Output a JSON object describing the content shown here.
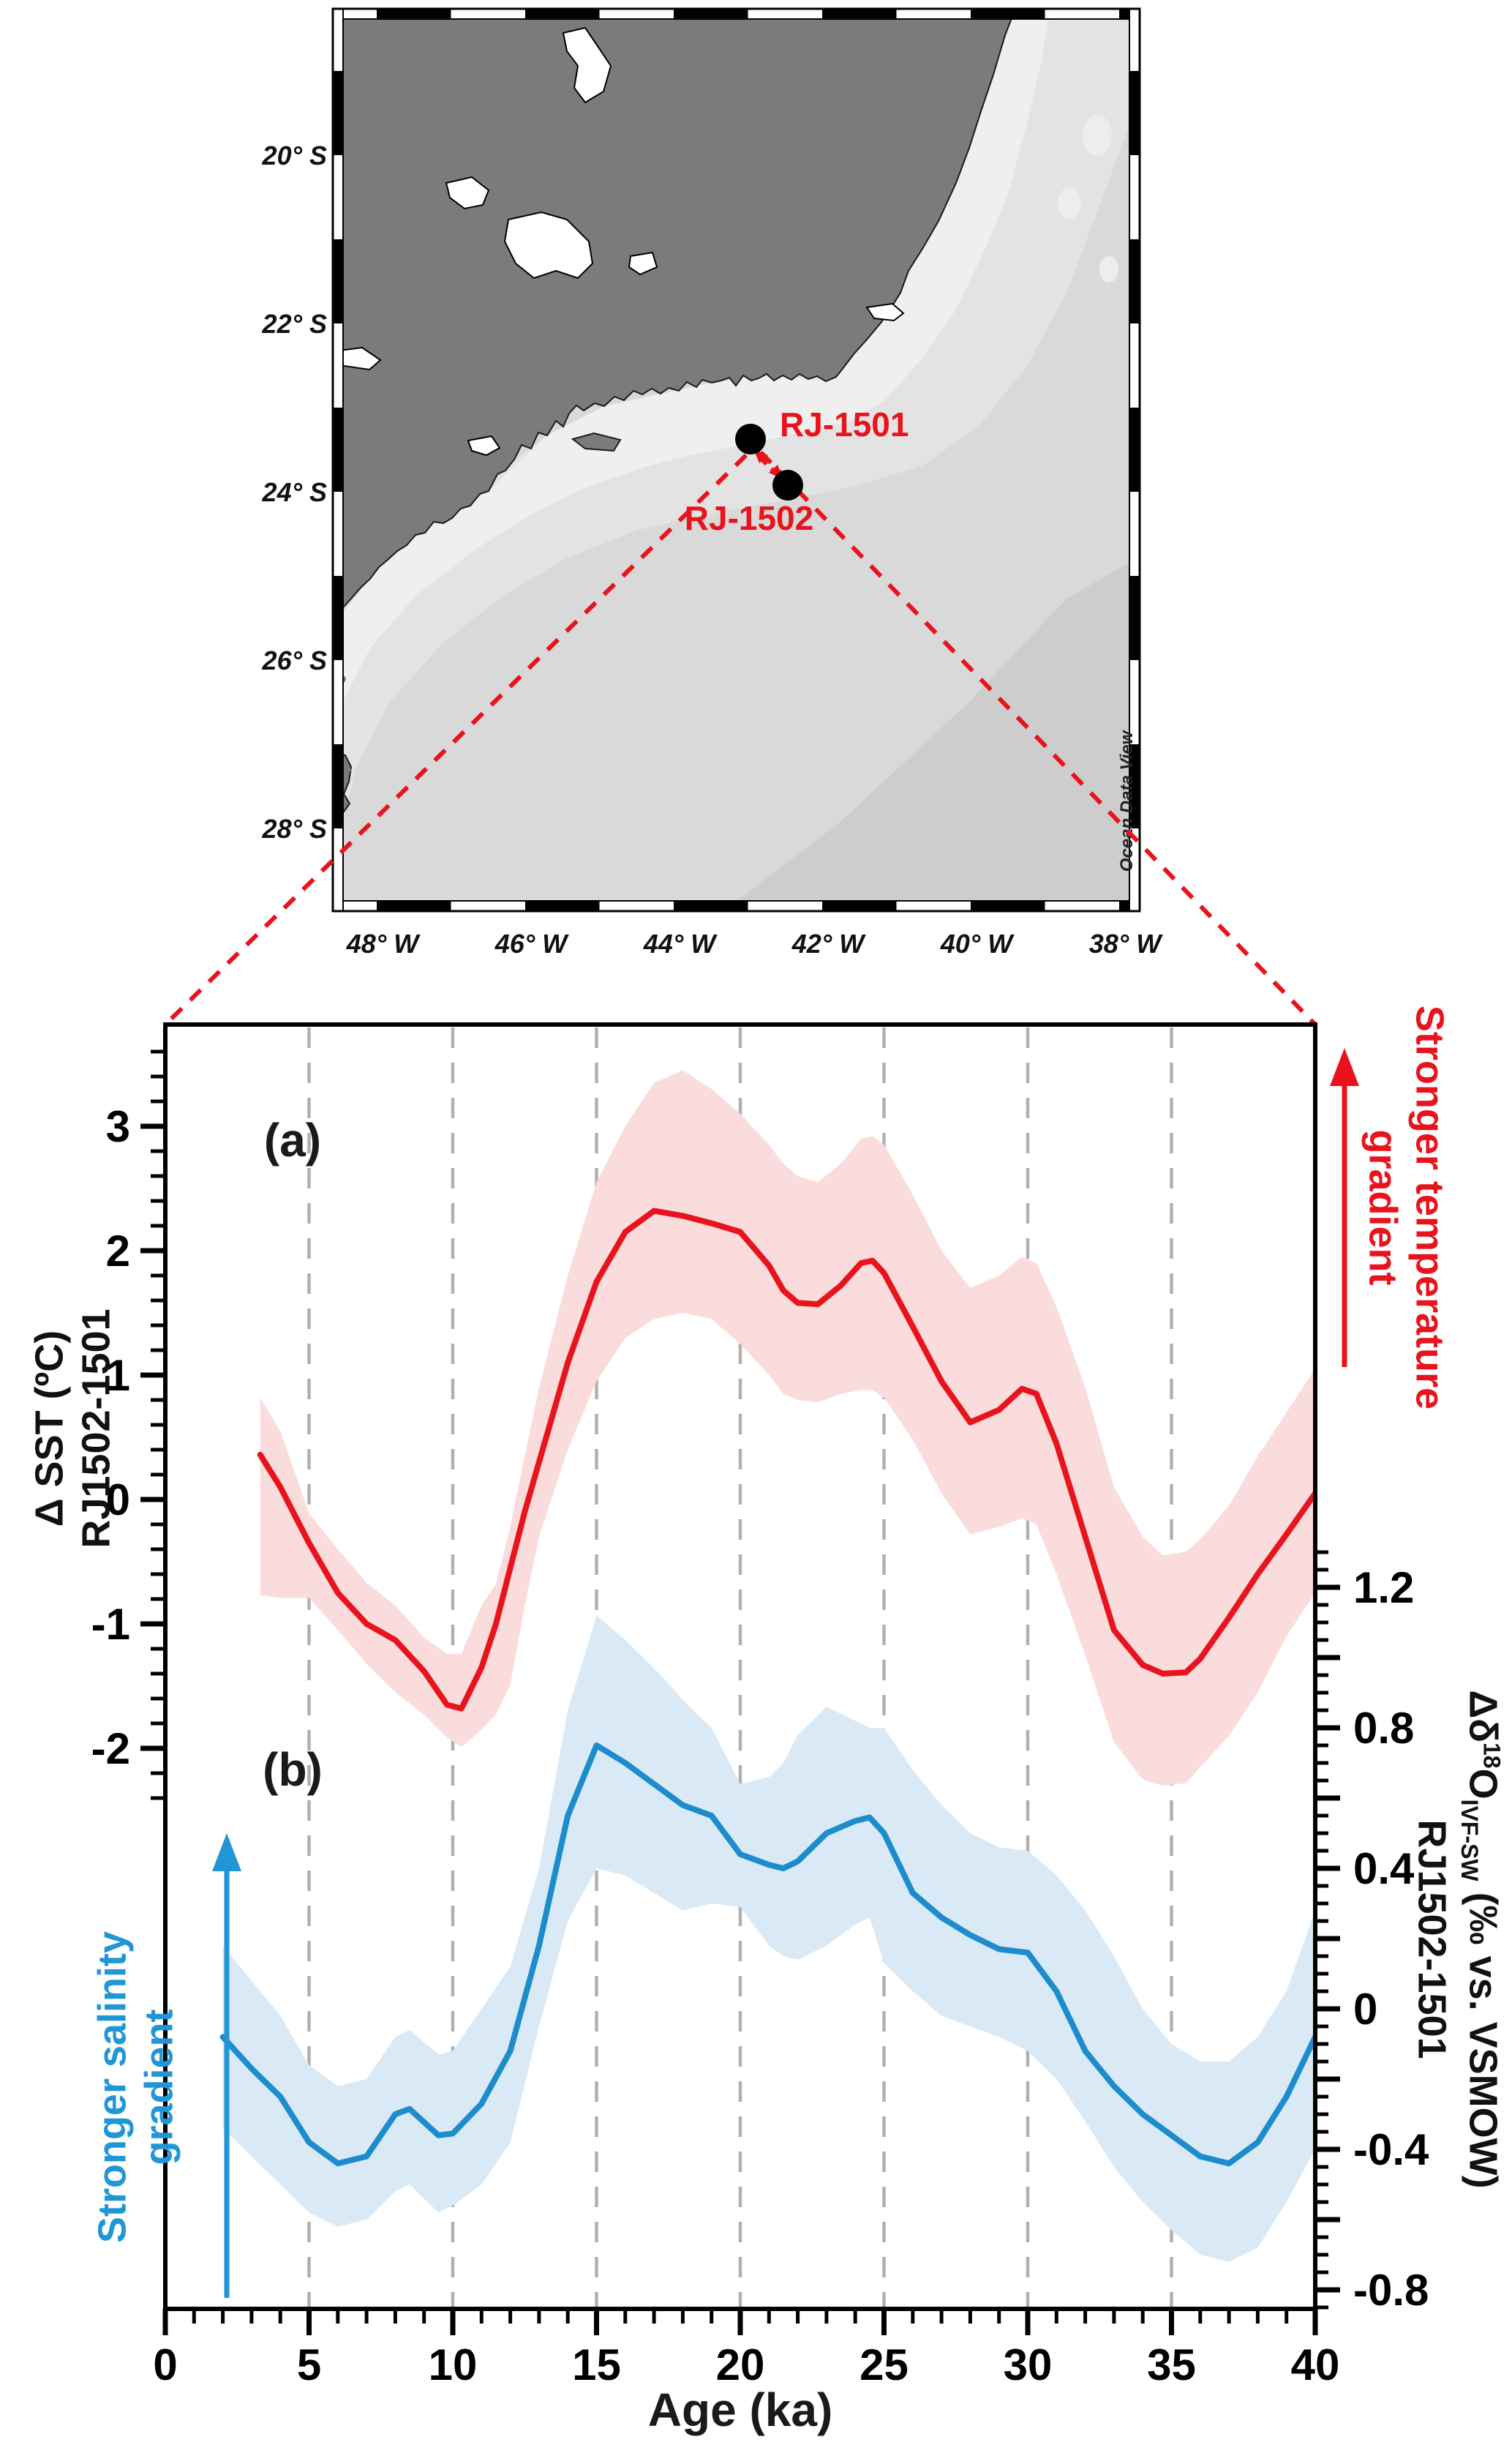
{
  "figure": {
    "panel_a": "(a)",
    "panel_b": "(b)"
  },
  "map": {
    "watermark": "Ocean Data View",
    "lat_labels": [
      "20° S",
      "22° S",
      "24° S",
      "26° S",
      "28° S"
    ],
    "lon_labels": [
      "48° W",
      "46° W",
      "44° W",
      "42° W",
      "40° W",
      "38° W"
    ],
    "sites": [
      {
        "name": "RJ-1501"
      },
      {
        "name": "RJ-1502"
      }
    ],
    "colors": {
      "land": "#7b7b7b",
      "ocean": "#d9d9d9",
      "mid": "#e3e3e3",
      "shelf": "#efefef",
      "deep": "#cdcdcd",
      "marker": "#000000",
      "accent": "#e8131c"
    }
  },
  "chart": {
    "x_axis": {
      "title": "Age (ka)",
      "tick_labels": [
        "0",
        "5",
        "10",
        "15",
        "20",
        "25",
        "30",
        "35",
        "40"
      ],
      "range": [
        0,
        40
      ],
      "major_step": 5,
      "minor_step": 1,
      "gridlines": [
        5,
        10,
        15,
        20,
        25,
        30,
        35
      ],
      "grid_color": "#b0b0b0"
    },
    "left_axis": {
      "title_line1": "Δ SST (ºC)",
      "title_line2": "RJ1502-1501",
      "tick_labels": [
        "3",
        "2",
        "1",
        "0",
        "-1",
        "-2"
      ],
      "tick_values": [
        3,
        2,
        1,
        0,
        -1,
        -2
      ],
      "minor_step": 0.2,
      "range": [
        -2.45,
        3.82
      ]
    },
    "right_axis": {
      "title_pre": "Δδ",
      "title_sup": "18",
      "title_o": "O",
      "title_sub": "IVF-SW",
      "title_post": " (‰ vs. VSMOW)",
      "title_line2": "RJ1502-1501",
      "tick_labels": [
        "1.2",
        "0.8",
        "0.4",
        "0",
        "-0.4",
        "-0.8"
      ],
      "tick_values": [
        1.2,
        0.8,
        0.4,
        0,
        -0.4,
        -0.8
      ],
      "minor_step": 0.05,
      "range": [
        -0.88,
        1.32
      ]
    },
    "annotations": {
      "temperature": {
        "line1": "Stronger temperature",
        "line2": "gradient",
        "color": "#e8131c"
      },
      "salinity": {
        "line1": "Stronger salinity",
        "line2": "gradient",
        "color": "#2196d6"
      }
    }
  },
  "chart_data": {
    "type": "line",
    "x_label": "Age (ka)",
    "x_range": [
      0,
      40
    ],
    "grid": "vertical-dashed",
    "series": [
      {
        "name": "ΔSST (°C) RJ1502-1501",
        "panel": "a",
        "axis": "left",
        "color": "#e8131c",
        "band_color": "#fadcdc",
        "x": [
          3.3,
          4,
          5,
          6,
          7,
          8,
          9,
          9.8,
          10.3,
          11,
          11.5,
          12,
          12.5,
          13,
          14,
          15,
          16,
          17,
          18,
          19,
          20,
          21,
          21.5,
          22,
          22.7,
          23.5,
          24.2,
          24.6,
          25,
          26,
          27,
          28,
          29,
          29.8,
          30.3,
          31,
          32,
          33,
          34,
          34.7,
          35.5,
          36,
          37,
          38,
          39,
          40
        ],
        "y": [
          0.36,
          0.1,
          -0.35,
          -0.75,
          -1.0,
          -1.13,
          -1.38,
          -1.65,
          -1.68,
          -1.35,
          -1.0,
          -0.55,
          -0.1,
          0.3,
          1.1,
          1.75,
          2.15,
          2.32,
          2.28,
          2.22,
          2.15,
          1.88,
          1.68,
          1.58,
          1.57,
          1.72,
          1.9,
          1.92,
          1.82,
          1.39,
          0.95,
          0.62,
          0.72,
          0.89,
          0.85,
          0.45,
          -0.3,
          -1.05,
          -1.33,
          -1.4,
          -1.39,
          -1.28,
          -0.95,
          -0.6,
          -0.28,
          0.05
        ],
        "band_upper": [
          0.82,
          0.55,
          -0.11,
          -0.4,
          -0.67,
          -0.85,
          -1.11,
          -1.24,
          -1.24,
          -0.85,
          -0.68,
          -0.22,
          0.35,
          0.9,
          1.8,
          2.55,
          3.0,
          3.35,
          3.45,
          3.3,
          3.1,
          2.85,
          2.7,
          2.6,
          2.55,
          2.7,
          2.9,
          2.92,
          2.85,
          2.45,
          2.0,
          1.7,
          1.8,
          1.95,
          1.9,
          1.55,
          0.9,
          0.1,
          -0.3,
          -0.45,
          -0.42,
          -0.32,
          -0.05,
          0.35,
          0.7,
          1.05
        ],
        "band_lower": [
          -0.77,
          -0.79,
          -0.79,
          -1.05,
          -1.32,
          -1.55,
          -1.73,
          -1.91,
          -1.99,
          -1.85,
          -1.73,
          -1.49,
          -0.85,
          -0.3,
          0.4,
          0.95,
          1.3,
          1.45,
          1.5,
          1.45,
          1.25,
          1.0,
          0.85,
          0.8,
          0.78,
          0.85,
          0.88,
          0.88,
          0.82,
          0.48,
          0.05,
          -0.28,
          -0.22,
          -0.15,
          -0.2,
          -0.6,
          -1.25,
          -1.95,
          -2.25,
          -2.3,
          -2.28,
          -2.15,
          -1.9,
          -1.55,
          -1.1,
          -0.75
        ]
      },
      {
        "name": "Δδ18O IVF-SW (‰ vs. VSMOW) RJ1502-1501",
        "panel": "b",
        "axis": "right",
        "color": "#1d8ccd",
        "band_color": "#d9eaf6",
        "x": [
          2,
          3,
          4,
          5,
          6,
          7,
          8,
          8.5,
          9.5,
          10,
          11,
          12,
          13,
          14,
          15,
          16,
          17,
          18,
          19,
          20,
          21,
          21.5,
          22,
          23,
          24,
          24.5,
          25,
          26,
          27,
          28,
          29,
          30,
          31,
          32,
          33,
          34,
          35,
          36,
          37,
          38,
          39,
          40
        ],
        "y": [
          -0.08,
          -0.17,
          -0.25,
          -0.38,
          -0.44,
          -0.42,
          -0.3,
          -0.285,
          -0.36,
          -0.355,
          -0.27,
          -0.12,
          0.18,
          0.55,
          0.75,
          0.7,
          0.64,
          0.58,
          0.55,
          0.44,
          0.41,
          0.4,
          0.42,
          0.5,
          0.535,
          0.545,
          0.5,
          0.33,
          0.26,
          0.21,
          0.17,
          0.16,
          0.05,
          -0.12,
          -0.22,
          -0.3,
          -0.36,
          -0.42,
          -0.44,
          -0.38,
          -0.25,
          -0.08
        ],
        "band_upper": [
          0.18,
          0.08,
          -0.02,
          -0.16,
          -0.22,
          -0.2,
          -0.08,
          -0.06,
          -0.13,
          -0.12,
          0.0,
          0.12,
          0.4,
          0.85,
          1.12,
          1.05,
          0.97,
          0.88,
          0.8,
          0.64,
          0.66,
          0.7,
          0.78,
          0.86,
          0.82,
          0.8,
          0.8,
          0.68,
          0.58,
          0.5,
          0.46,
          0.45,
          0.38,
          0.28,
          0.15,
          0.0,
          -0.1,
          -0.15,
          -0.15,
          -0.08,
          0.05,
          0.28
        ],
        "band_lower": [
          -0.34,
          -0.42,
          -0.5,
          -0.58,
          -0.62,
          -0.6,
          -0.52,
          -0.5,
          -0.58,
          -0.56,
          -0.5,
          -0.38,
          -0.05,
          0.25,
          0.4,
          0.38,
          0.33,
          0.28,
          0.3,
          0.29,
          0.18,
          0.15,
          0.14,
          0.18,
          0.24,
          0.26,
          0.13,
          0.05,
          -0.02,
          -0.05,
          -0.08,
          -0.12,
          -0.2,
          -0.32,
          -0.45,
          -0.55,
          -0.63,
          -0.7,
          -0.72,
          -0.68,
          -0.55,
          -0.4
        ]
      }
    ]
  }
}
